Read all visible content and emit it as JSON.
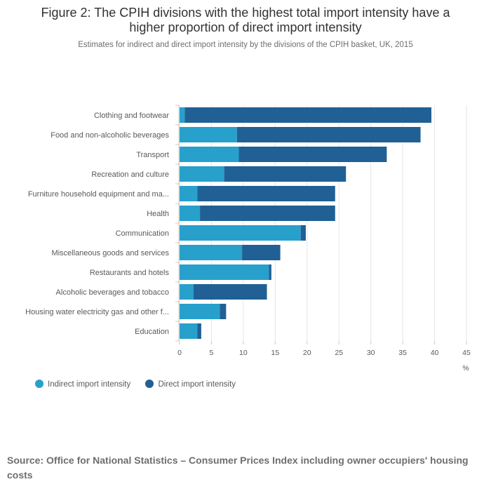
{
  "title_line1": "Figure 2: The CPIH divisions with the highest total import intensity have a",
  "title_line2": "higher proportion of direct import intensity",
  "subtitle": "Estimates for indirect and direct import intensity by the divisions of the CPIH basket, UK, 2015",
  "source": "Source: Office for National Statistics – Consumer Prices Index including owner occupiers' housing costs",
  "colors": {
    "indirect": "#27a0cc",
    "direct": "#206095",
    "grid": "#e6e6e6",
    "axis": "#cccccc"
  },
  "chart_data": {
    "type": "bar",
    "orientation": "horizontal",
    "stacked": true,
    "categories": [
      "Clothing and footwear",
      "Food and non-alcoholic beverages",
      "Transport",
      "Recreation and culture",
      "Furniture household equipment and ma...",
      "Health",
      "Communication",
      "Miscellaneous goods and services",
      "Restaurants and hotels",
      "Alcoholic beverages and tobacco",
      "Housing water electricity gas and other f...",
      "Education"
    ],
    "series": [
      {
        "name": "Indirect import intensity",
        "values": [
          0.8,
          9.0,
          9.3,
          7.0,
          2.8,
          3.2,
          19.0,
          9.8,
          14.0,
          2.2,
          6.3,
          2.8
        ]
      },
      {
        "name": "Direct import intensity",
        "values": [
          38.7,
          28.8,
          23.2,
          19.1,
          21.6,
          21.2,
          0.8,
          6.0,
          0.4,
          11.5,
          1.0,
          0.6
        ]
      }
    ],
    "xlabel": "%",
    "ylabel": "",
    "xlim": [
      0,
      45
    ],
    "xticks": [
      0,
      5,
      10,
      15,
      20,
      25,
      30,
      35,
      40,
      45
    ],
    "grid": true,
    "legend_position": "bottom-left"
  }
}
